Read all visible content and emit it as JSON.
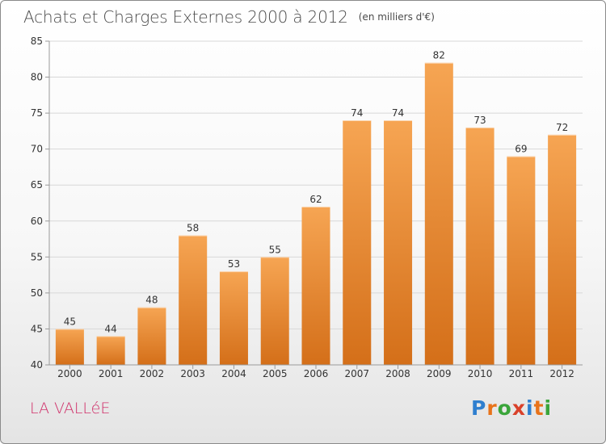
{
  "header": {
    "title": "Achats et Charges Externes 2000 à 2012",
    "unit": "(en milliers d'€)"
  },
  "footer": {
    "place": "LA VALLéE",
    "brand_letters": [
      "P",
      "r",
      "o",
      "x",
      "i",
      "t",
      "i"
    ],
    "brand_colors": [
      "#2f7fcf",
      "#e8731a",
      "#3aa53a",
      "#d9412a",
      "#2f7fcf",
      "#e8731a",
      "#3aa53a"
    ]
  },
  "colors": {
    "bar_top": "#f6a553",
    "bar_bottom": "#d46f19",
    "axis": "#9a9a9a",
    "grid": "#d8d8d8",
    "label": "#333333",
    "place": "#d0306a"
  },
  "chart_data": {
    "type": "bar",
    "title": "Achats et Charges Externes 2000 à 2012",
    "subtitle": "(en milliers d'€)",
    "xlabel": "",
    "ylabel": "",
    "categories": [
      "2000",
      "2001",
      "2002",
      "2003",
      "2004",
      "2005",
      "2006",
      "2007",
      "2008",
      "2009",
      "2010",
      "2011",
      "2012"
    ],
    "values": [
      45,
      44,
      48,
      58,
      53,
      55,
      62,
      74,
      74,
      82,
      73,
      69,
      72
    ],
    "ylim": [
      40,
      85
    ],
    "yticks": [
      40,
      45,
      50,
      55,
      60,
      65,
      70,
      75,
      80,
      85
    ],
    "grid": true
  }
}
